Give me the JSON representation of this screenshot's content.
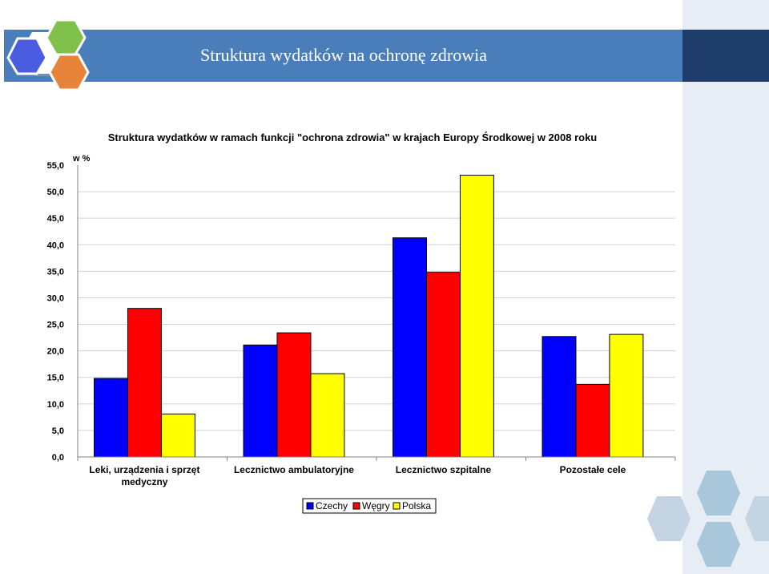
{
  "slide": {
    "title": "Struktura wydatków na ochronę zdrowia"
  },
  "colors": {
    "band": "#4a7ebb",
    "band_dark": "#1f3d6b",
    "czechy": "#0000ff",
    "wegry": "#ff0000",
    "polska": "#ffff00"
  },
  "chart_data": {
    "type": "bar",
    "title": "Struktura wydatków w ramach funkcji \"ochrona zdrowia\" w krajach Europy Środkowej w 2008 roku",
    "ylabel": "w %",
    "ylim": [
      0,
      55
    ],
    "yticks": [
      "0,0",
      "5,0",
      "10,0",
      "15,0",
      "20,0",
      "25,0",
      "30,0",
      "35,0",
      "40,0",
      "45,0",
      "50,0",
      "55,0"
    ],
    "categories": [
      [
        "Leki, urządzenia i sprzęt",
        "medyczny"
      ],
      [
        "Lecznictwo ambulatoryjne"
      ],
      [
        "Lecznictwo szpitalne"
      ],
      [
        "Pozostałe cele"
      ]
    ],
    "series": [
      {
        "name": "Czechy",
        "color": "#0000ff",
        "values": [
          14.8,
          21.1,
          41.3,
          22.7
        ]
      },
      {
        "name": "Węgry",
        "color": "#ff0000",
        "values": [
          28.0,
          23.4,
          34.8,
          13.7
        ]
      },
      {
        "name": "Polska",
        "color": "#ffff00",
        "values": [
          8.1,
          15.7,
          53.1,
          23.1
        ]
      }
    ],
    "grid": true,
    "legend": "bottom"
  }
}
